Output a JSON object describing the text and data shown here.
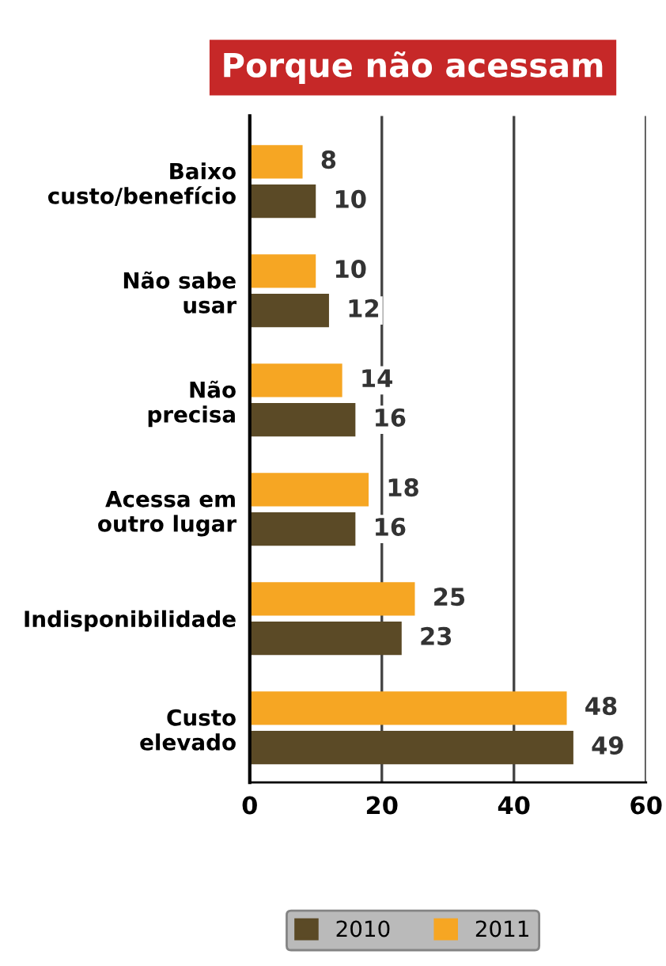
{
  "chart_data": {
    "type": "bar",
    "orientation": "horizontal",
    "title": "Porque não acessam",
    "categories": [
      "Baixo\ncusto/benefício",
      "Não sabe\nusar",
      "Não\nprecisa",
      "Acessa em\noutro lugar",
      "Indisponibilidade",
      "Custo\nelevado"
    ],
    "series": [
      {
        "name": "2010",
        "color": "#5b4a26",
        "values": [
          10,
          12,
          16,
          16,
          23,
          49
        ]
      },
      {
        "name": "2011",
        "color": "#f6a623",
        "values": [
          8,
          10,
          14,
          18,
          25,
          48
        ]
      }
    ],
    "xlim": [
      0,
      60
    ],
    "xticks": [
      0,
      20,
      40,
      60
    ],
    "grid": "x",
    "legend": "bottom",
    "data_labels": true
  }
}
